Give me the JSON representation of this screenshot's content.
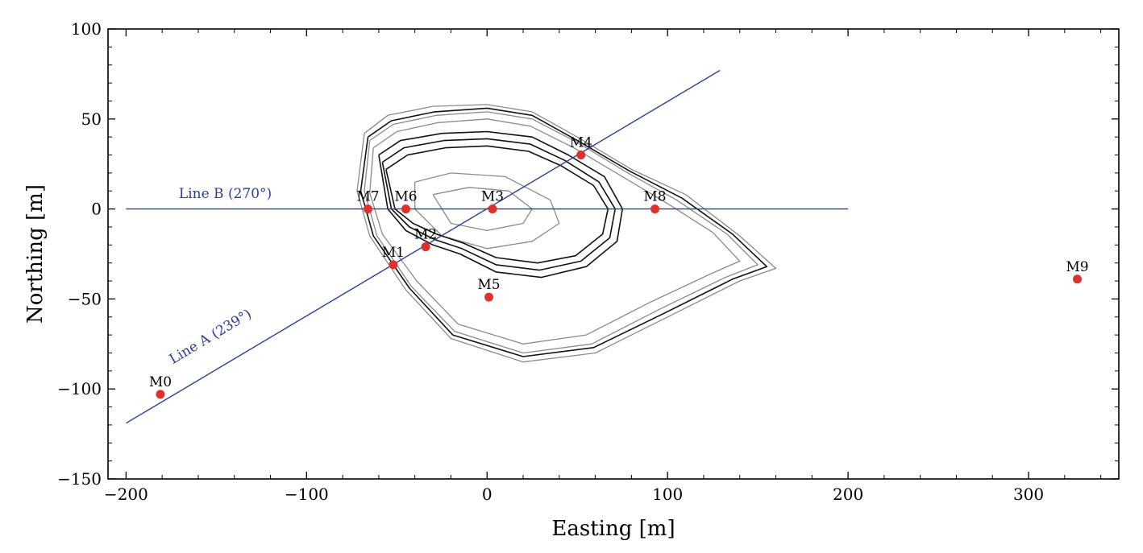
{
  "chart_data": {
    "type": "scatter",
    "xlabel": "Easting [m]",
    "ylabel": "Northing [m]",
    "xlim": [
      -210,
      350
    ],
    "ylim": [
      -150,
      100
    ],
    "xticks": [
      -200,
      -100,
      0,
      100,
      200,
      300
    ],
    "yticks": [
      -150,
      -100,
      -50,
      0,
      50,
      100
    ],
    "xtick_labels": [
      "−200",
      "−100",
      "0",
      "100",
      "200",
      "300"
    ],
    "ytick_labels": [
      "−150",
      "−100",
      "−50",
      "0",
      "50",
      "100"
    ],
    "grid": false,
    "colors": {
      "stations": "#e0302a",
      "lines": "#2a3d9c",
      "contour_dark": "#111111",
      "contour_light": "#8a8a8a"
    },
    "stations": [
      {
        "name": "M0",
        "x": -181,
        "y": -103
      },
      {
        "name": "M1",
        "x": -52,
        "y": -31
      },
      {
        "name": "M2",
        "x": -34,
        "y": -21
      },
      {
        "name": "M3",
        "x": 3,
        "y": 0
      },
      {
        "name": "M4",
        "x": 52,
        "y": 30
      },
      {
        "name": "M5",
        "x": 1,
        "y": -49
      },
      {
        "name": "M6",
        "x": -45,
        "y": 0
      },
      {
        "name": "M7",
        "x": -66,
        "y": 0
      },
      {
        "name": "M8",
        "x": 93,
        "y": 0
      },
      {
        "name": "M9",
        "x": 327,
        "y": -39
      }
    ],
    "survey_lines": [
      {
        "label": "Line A (239°)",
        "x": [
          -200,
          129
        ],
        "y": [
          -119,
          77
        ],
        "label_x": -152,
        "label_y": -73,
        "label_angle_deg": 31
      },
      {
        "label": "Line B (270°)",
        "x": [
          -200,
          200
        ],
        "y": [
          0,
          0
        ],
        "label_x": -145,
        "label_y": 6,
        "label_angle_deg": 0
      }
    ],
    "contours": {
      "light": [
        [
          [
            -68,
            42
          ],
          [
            -55,
            52
          ],
          [
            -30,
            57
          ],
          [
            0,
            58
          ],
          [
            25,
            54
          ],
          [
            50,
            40
          ],
          [
            80,
            22
          ],
          [
            110,
            8
          ],
          [
            140,
            -15
          ],
          [
            160,
            -33
          ],
          [
            140,
            -40
          ],
          [
            100,
            -60
          ],
          [
            60,
            -80
          ],
          [
            20,
            -85
          ],
          [
            -20,
            -72
          ],
          [
            -45,
            -45
          ],
          [
            -65,
            -15
          ],
          [
            -72,
            10
          ],
          [
            -68,
            42
          ]
        ],
        [
          [
            -65,
            38
          ],
          [
            -52,
            47
          ],
          [
            -28,
            52
          ],
          [
            0,
            54
          ],
          [
            25,
            50
          ],
          [
            50,
            37
          ],
          [
            78,
            20
          ],
          [
            105,
            5
          ],
          [
            133,
            -14
          ],
          [
            150,
            -31
          ],
          [
            132,
            -38
          ],
          [
            95,
            -56
          ],
          [
            58,
            -75
          ],
          [
            20,
            -80
          ],
          [
            -18,
            -68
          ],
          [
            -42,
            -43
          ],
          [
            -61,
            -15
          ],
          [
            -68,
            10
          ],
          [
            -65,
            38
          ]
        ],
        [
          [
            -63,
            34
          ],
          [
            -50,
            43
          ],
          [
            -27,
            48
          ],
          [
            0,
            50
          ],
          [
            24,
            46
          ],
          [
            48,
            34
          ],
          [
            75,
            18
          ],
          [
            100,
            3
          ],
          [
            125,
            -13
          ],
          [
            140,
            -29
          ],
          [
            124,
            -36
          ],
          [
            90,
            -52
          ],
          [
            55,
            -70
          ],
          [
            20,
            -75
          ],
          [
            -16,
            -64
          ],
          [
            -39,
            -40
          ],
          [
            -58,
            -14
          ],
          [
            -65,
            9
          ],
          [
            -63,
            34
          ]
        ],
        [
          [
            -40,
            15
          ],
          [
            -20,
            20
          ],
          [
            10,
            18
          ],
          [
            35,
            5
          ],
          [
            40,
            -8
          ],
          [
            25,
            -18
          ],
          [
            0,
            -22
          ],
          [
            -25,
            -15
          ],
          [
            -40,
            0
          ],
          [
            -40,
            15
          ]
        ],
        [
          [
            -30,
            8
          ],
          [
            -10,
            12
          ],
          [
            12,
            10
          ],
          [
            25,
            0
          ],
          [
            20,
            -8
          ],
          [
            0,
            -12
          ],
          [
            -20,
            -8
          ],
          [
            -30,
            8
          ]
        ]
      ],
      "dark": [
        [
          [
            -66,
            40
          ],
          [
            -53,
            49
          ],
          [
            -29,
            54
          ],
          [
            0,
            56
          ],
          [
            25,
            52
          ],
          [
            50,
            38
          ],
          [
            79,
            21
          ],
          [
            108,
            6
          ],
          [
            136,
            -14
          ],
          [
            155,
            -32
          ],
          [
            136,
            -39
          ],
          [
            98,
            -58
          ],
          [
            59,
            -77
          ],
          [
            20,
            -82
          ],
          [
            -19,
            -70
          ],
          [
            -43,
            -44
          ],
          [
            -63,
            -15
          ],
          [
            -70,
            10
          ],
          [
            -66,
            40
          ]
        ],
        [
          [
            -60,
            30
          ],
          [
            -48,
            38
          ],
          [
            -25,
            42
          ],
          [
            0,
            43
          ],
          [
            25,
            40
          ],
          [
            45,
            30
          ],
          [
            65,
            18
          ],
          [
            75,
            0
          ],
          [
            72,
            -18
          ],
          [
            55,
            -32
          ],
          [
            30,
            -38
          ],
          [
            5,
            -35
          ],
          [
            -15,
            -25
          ],
          [
            -30,
            -20
          ],
          [
            -45,
            -12
          ],
          [
            -55,
            0
          ],
          [
            -60,
            30
          ]
        ],
        [
          [
            -58,
            26
          ],
          [
            -46,
            34
          ],
          [
            -24,
            38
          ],
          [
            0,
            39
          ],
          [
            24,
            36
          ],
          [
            43,
            27
          ],
          [
            62,
            15
          ],
          [
            71,
            0
          ],
          [
            68,
            -16
          ],
          [
            52,
            -29
          ],
          [
            29,
            -34
          ],
          [
            5,
            -31
          ],
          [
            -14,
            -22
          ],
          [
            -29,
            -17
          ],
          [
            -43,
            -10
          ],
          [
            -53,
            0
          ],
          [
            -58,
            26
          ]
        ],
        [
          [
            -56,
            22
          ],
          [
            -44,
            30
          ],
          [
            -23,
            34
          ],
          [
            0,
            35
          ],
          [
            23,
            32
          ],
          [
            41,
            24
          ],
          [
            59,
            13
          ],
          [
            67,
            0
          ],
          [
            64,
            -14
          ],
          [
            49,
            -26
          ],
          [
            28,
            -30
          ],
          [
            5,
            -27
          ],
          [
            -13,
            -19
          ],
          [
            -28,
            -14
          ],
          [
            -41,
            -8
          ],
          [
            -51,
            0
          ],
          [
            -56,
            22
          ]
        ]
      ]
    }
  }
}
